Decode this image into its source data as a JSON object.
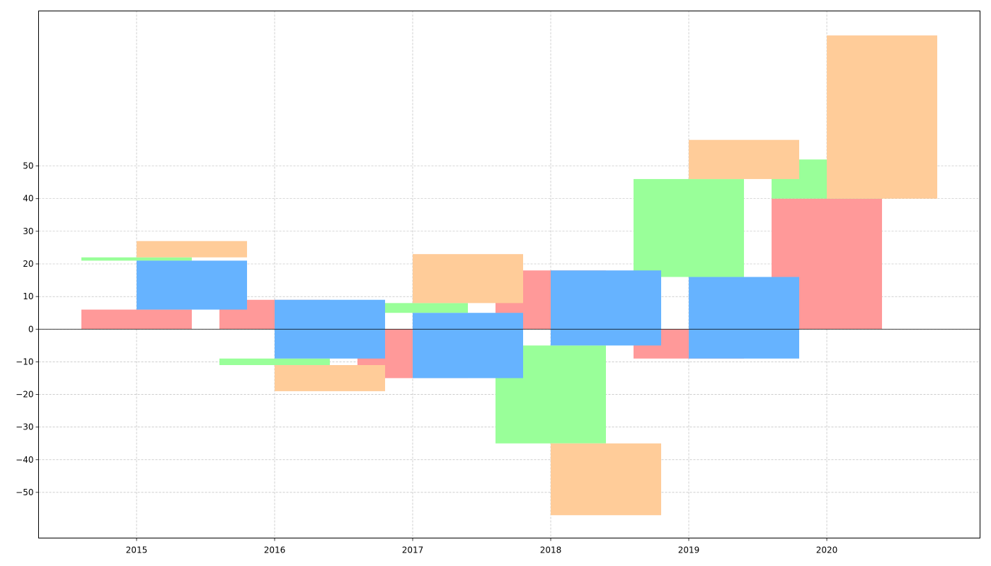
{
  "chart_data": {
    "type": "bar",
    "x_ticks": [
      "2015",
      "2016",
      "2017",
      "2018",
      "2019",
      "2020"
    ],
    "y_ticks": [
      -50,
      -40,
      -30,
      -20,
      -10,
      0,
      10,
      20,
      30,
      40,
      50
    ],
    "xlim": [
      2014.29,
      2021.11
    ],
    "ylim": [
      -64,
      97.5
    ],
    "grid": true,
    "bar_width": 0.8,
    "series": [
      {
        "color": "#ff9999",
        "bars": [
          {
            "x": 2015.0,
            "bottom": 0,
            "top": 6
          },
          {
            "x": 2016.0,
            "bottom": 0,
            "top": 9
          },
          {
            "x": 2017.0,
            "bottom": -15,
            "top": 0
          },
          {
            "x": 2018.0,
            "bottom": 0,
            "top": 18
          },
          {
            "x": 2019.0,
            "bottom": -9,
            "top": 0
          },
          {
            "x": 2020.0,
            "bottom": 0,
            "top": 40
          }
        ]
      },
      {
        "color": "#99ff99",
        "bars": [
          {
            "x": 2015.0,
            "bottom": 21,
            "top": 22
          },
          {
            "x": 2016.0,
            "bottom": -11,
            "top": -9
          },
          {
            "x": 2017.0,
            "bottom": 5,
            "top": 8
          },
          {
            "x": 2018.0,
            "bottom": -35,
            "top": -5
          },
          {
            "x": 2019.0,
            "bottom": 16,
            "top": 46
          },
          {
            "x": 2020.0,
            "bottom": 40,
            "top": 52
          }
        ]
      },
      {
        "color": "#66b3ff",
        "bars": [
          {
            "x": 2015.4,
            "bottom": 6,
            "top": 21
          },
          {
            "x": 2016.4,
            "bottom": -9,
            "top": 9
          },
          {
            "x": 2017.4,
            "bottom": -15,
            "top": 5
          },
          {
            "x": 2018.4,
            "bottom": -5,
            "top": 18
          },
          {
            "x": 2019.4,
            "bottom": -9,
            "top": 16
          }
        ]
      },
      {
        "color": "#ffcc99",
        "bars": [
          {
            "x": 2015.4,
            "bottom": 22,
            "top": 27
          },
          {
            "x": 2016.4,
            "bottom": -19,
            "top": -11
          },
          {
            "x": 2017.4,
            "bottom": 8,
            "top": 23
          },
          {
            "x": 2018.4,
            "bottom": -57,
            "top": -35
          },
          {
            "x": 2019.4,
            "bottom": 46,
            "top": 58
          },
          {
            "x": 2020.4,
            "bottom": 40,
            "top": 90
          }
        ]
      }
    ]
  }
}
